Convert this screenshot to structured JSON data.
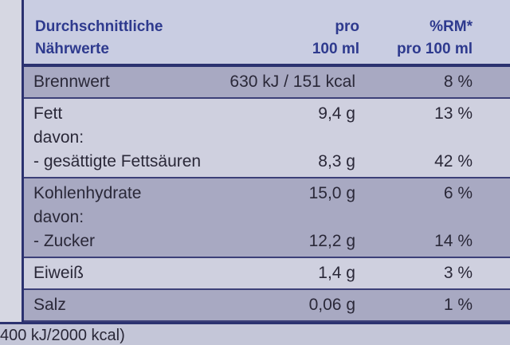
{
  "header": {
    "nutrients": [
      "Durchschnittliche",
      "Nährwerte"
    ],
    "amount": [
      "pro",
      "100 ml"
    ],
    "rdi": [
      "%RM*",
      "pro 100 ml"
    ]
  },
  "rows": [
    {
      "lines": [
        {
          "label": "Brennwert",
          "amount": "630 kJ / 151 kcal",
          "rdi": "8 %"
        }
      ]
    },
    {
      "lines": [
        {
          "label": "Fett",
          "amount": "9,4 g",
          "rdi": "13 %"
        },
        {
          "label": "davon:"
        },
        {
          "label": "- gesättigte Fettsäuren",
          "amount": "8,3 g",
          "rdi": "42 %"
        }
      ]
    },
    {
      "lines": [
        {
          "label": "Kohlenhydrate",
          "amount": "15,0 g",
          "rdi": "6 %"
        },
        {
          "label": "davon:"
        },
        {
          "label": "- Zucker",
          "amount": "12,2 g",
          "rdi": "14 %"
        }
      ]
    },
    {
      "lines": [
        {
          "label": "Eiweiß",
          "amount": "1,4 g",
          "rdi": "3 %"
        }
      ]
    },
    {
      "lines": [
        {
          "label": "Salz",
          "amount": "0,06 g",
          "rdi": "1 %"
        }
      ]
    }
  ],
  "footer": "400 kJ/2000 kcal)"
}
